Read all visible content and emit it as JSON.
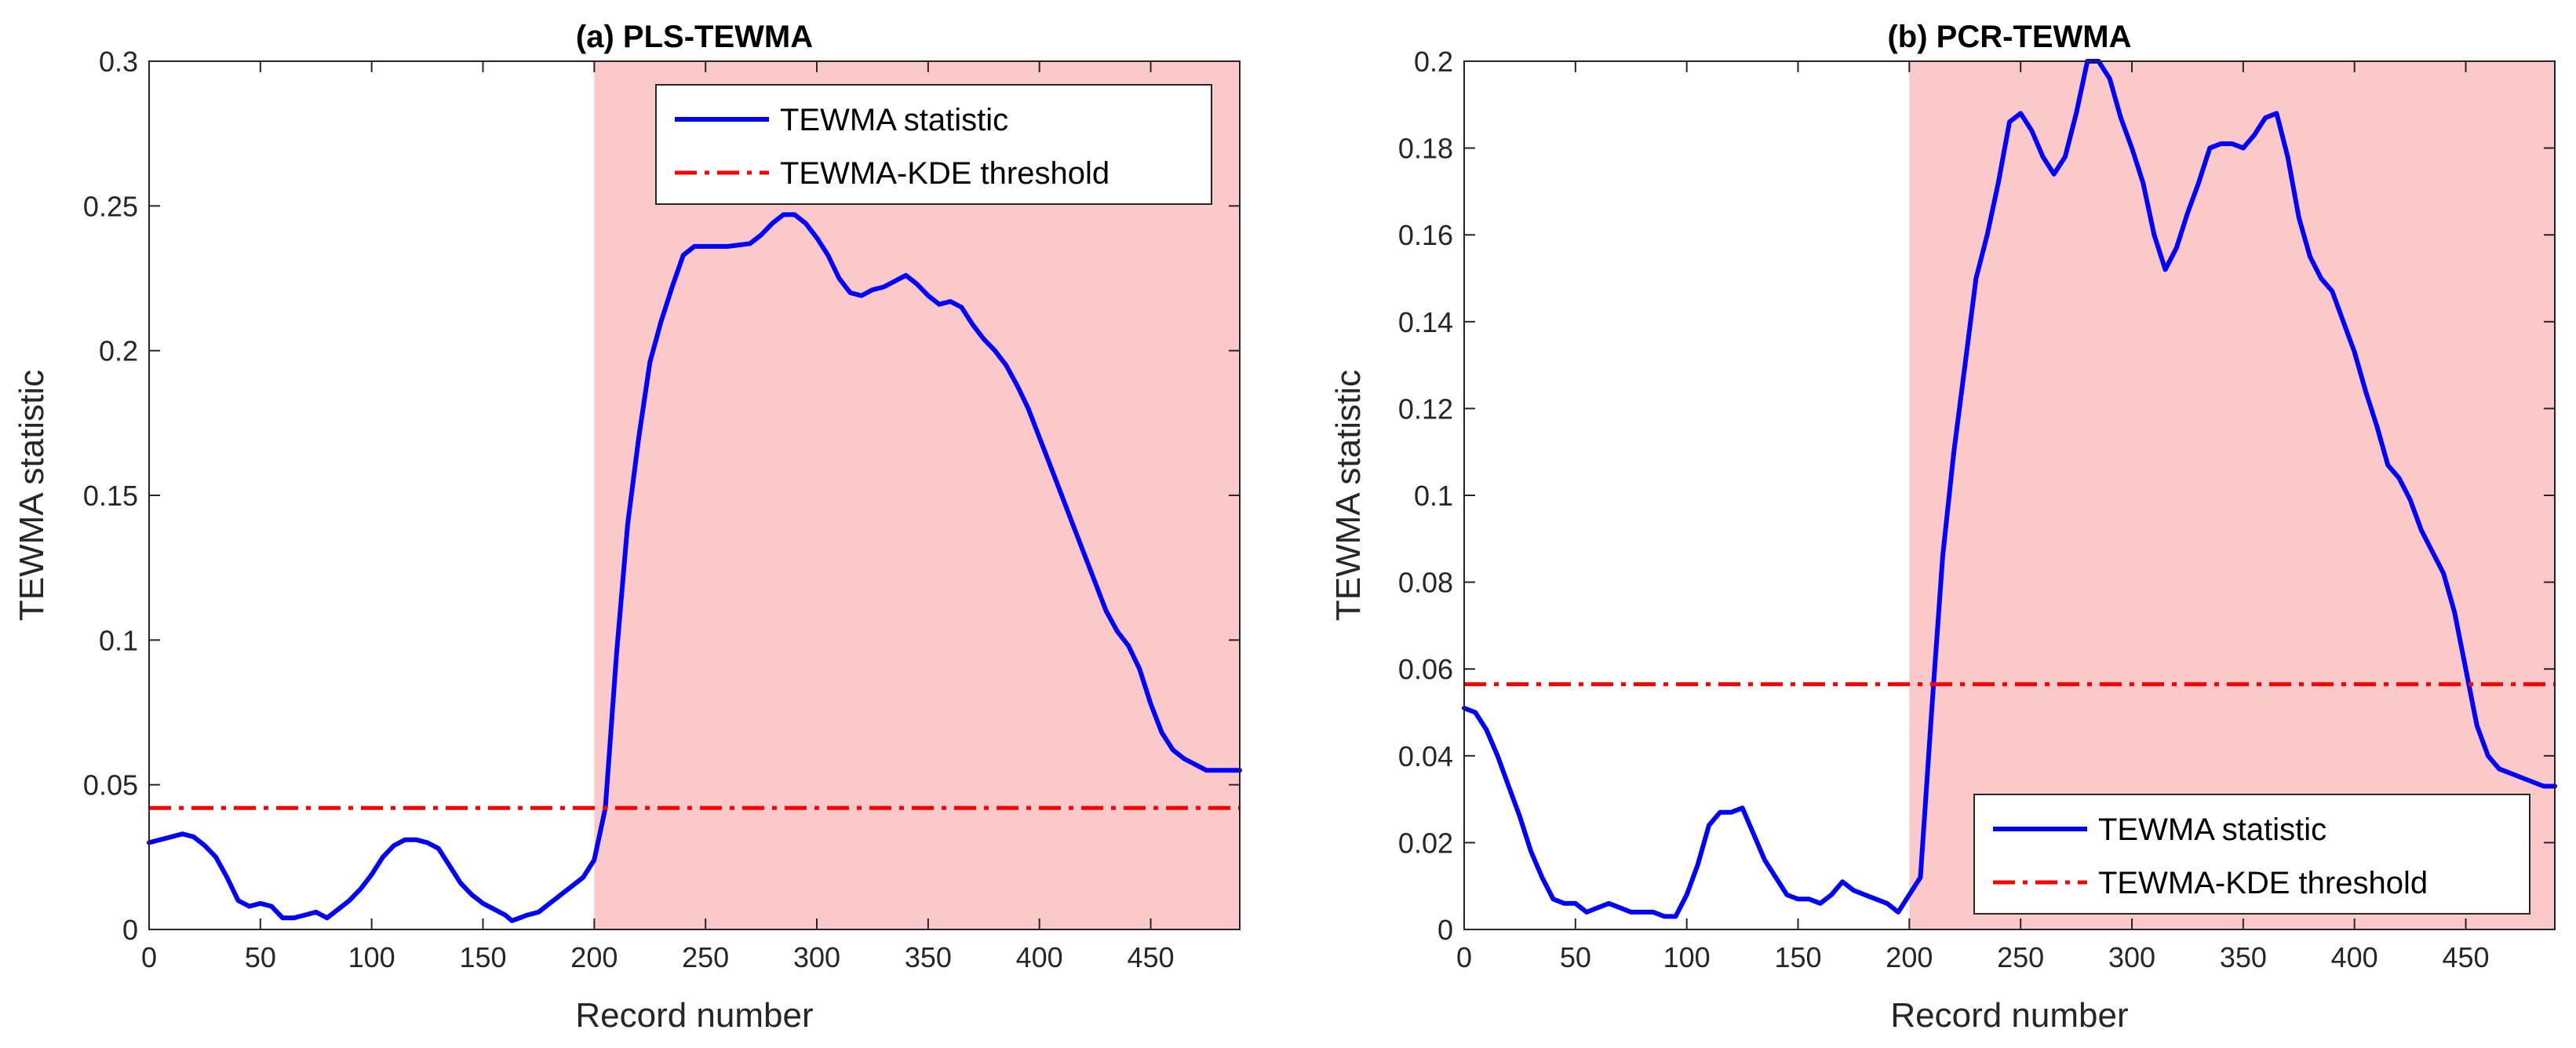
{
  "chart_data": [
    {
      "type": "line",
      "title": "(a) PLS-TEWMA",
      "xlabel": "Record number",
      "ylabel": "TEWMA statistic",
      "xlim": [
        0,
        490
      ],
      "ylim": [
        0,
        0.3
      ],
      "xticks": [
        0,
        50,
        100,
        150,
        200,
        250,
        300,
        350,
        400,
        450
      ],
      "yticks": [
        0,
        0.05,
        0.1,
        0.15,
        0.2,
        0.25,
        0.3
      ],
      "xtick_labels": [
        "0",
        "50",
        "100",
        "150",
        "200",
        "250",
        "300",
        "350",
        "400",
        "450"
      ],
      "ytick_labels": [
        "0",
        "0.05",
        "0.1",
        "0.15",
        "0.2",
        "0.25",
        "0.3"
      ],
      "grid": false,
      "legend_position": "top-right",
      "shaded_region": {
        "x_start": 200,
        "x_end": 490,
        "color": "#fbc9c9"
      },
      "series": [
        {
          "name": "TEWMA statistic",
          "color": "#0000ff",
          "style": "solid",
          "x": [
            0,
            10,
            15,
            20,
            25,
            30,
            35,
            40,
            45,
            50,
            55,
            60,
            65,
            70,
            75,
            80,
            85,
            90,
            95,
            100,
            105,
            110,
            115,
            120,
            125,
            130,
            135,
            140,
            145,
            150,
            155,
            160,
            163,
            170,
            175,
            180,
            185,
            190,
            195,
            200,
            205,
            210,
            215,
            220,
            225,
            230,
            235,
            240,
            245,
            250,
            255,
            260,
            270,
            275,
            280,
            285,
            290,
            295,
            300,
            305,
            310,
            315,
            320,
            325,
            330,
            335,
            340,
            345,
            350,
            355,
            360,
            365,
            370,
            375,
            380,
            385,
            390,
            395,
            400,
            405,
            410,
            415,
            420,
            425,
            430,
            435,
            440,
            445,
            450,
            455,
            460,
            465,
            470,
            475,
            480,
            485,
            490
          ],
          "values": [
            0.03,
            0.032,
            0.033,
            0.032,
            0.029,
            0.025,
            0.018,
            0.01,
            0.008,
            0.009,
            0.008,
            0.004,
            0.004,
            0.005,
            0.006,
            0.004,
            0.007,
            0.01,
            0.014,
            0.019,
            0.025,
            0.029,
            0.031,
            0.031,
            0.03,
            0.028,
            0.022,
            0.016,
            0.012,
            0.009,
            0.007,
            0.005,
            0.003,
            0.005,
            0.006,
            0.009,
            0.012,
            0.015,
            0.018,
            0.024,
            0.042,
            0.095,
            0.14,
            0.17,
            0.196,
            0.21,
            0.222,
            0.233,
            0.236,
            0.236,
            0.236,
            0.236,
            0.237,
            0.24,
            0.244,
            0.247,
            0.247,
            0.244,
            0.239,
            0.233,
            0.225,
            0.22,
            0.219,
            0.221,
            0.222,
            0.224,
            0.226,
            0.223,
            0.219,
            0.216,
            0.217,
            0.215,
            0.209,
            0.204,
            0.2,
            0.195,
            0.188,
            0.18,
            0.17,
            0.16,
            0.15,
            0.14,
            0.13,
            0.12,
            0.11,
            0.103,
            0.098,
            0.09,
            0.078,
            0.068,
            0.062,
            0.059,
            0.057,
            0.055,
            0.055,
            0.055,
            0.055
          ]
        },
        {
          "name": "TEWMA-KDE threshold",
          "color": "#ff0000",
          "style": "dashdot",
          "x": [
            0,
            490
          ],
          "values": [
            0.042,
            0.042
          ]
        }
      ]
    },
    {
      "type": "line",
      "title": "(b) PCR-TEWMA",
      "xlabel": "Record number",
      "ylabel": "TEWMA statistic",
      "xlim": [
        0,
        490
      ],
      "ylim": [
        0,
        0.2
      ],
      "xticks": [
        0,
        50,
        100,
        150,
        200,
        250,
        300,
        350,
        400,
        450
      ],
      "yticks": [
        0,
        0.02,
        0.04,
        0.06,
        0.08,
        0.1,
        0.12,
        0.14,
        0.16,
        0.18,
        0.2
      ],
      "xtick_labels": [
        "0",
        "50",
        "100",
        "150",
        "200",
        "250",
        "300",
        "350",
        "400",
        "450"
      ],
      "ytick_labels": [
        "0",
        "0.02",
        "0.04",
        "0.06",
        "0.08",
        "0.1",
        "0.12",
        "0.14",
        "0.16",
        "0.18",
        "0.2"
      ],
      "grid": false,
      "legend_position": "bottom-right",
      "shaded_region": {
        "x_start": 200,
        "x_end": 490,
        "color": "#fbc9c9"
      },
      "series": [
        {
          "name": "TEWMA statistic",
          "color": "#0000ff",
          "style": "solid",
          "x": [
            0,
            5,
            10,
            15,
            20,
            25,
            30,
            35,
            40,
            45,
            50,
            55,
            60,
            65,
            70,
            75,
            80,
            85,
            90,
            95,
            100,
            105,
            110,
            115,
            120,
            125,
            130,
            135,
            140,
            145,
            150,
            155,
            160,
            165,
            170,
            175,
            180,
            185,
            190,
            195,
            200,
            205,
            210,
            215,
            220,
            225,
            230,
            235,
            240,
            245,
            250,
            255,
            260,
            265,
            270,
            275,
            280,
            285,
            290,
            295,
            300,
            305,
            310,
            315,
            320,
            325,
            330,
            335,
            340,
            345,
            350,
            355,
            360,
            365,
            370,
            375,
            380,
            385,
            390,
            395,
            400,
            405,
            410,
            415,
            420,
            425,
            430,
            435,
            440,
            445,
            450,
            455,
            460,
            465,
            470,
            475,
            480,
            485,
            490
          ],
          "values": [
            0.051,
            0.05,
            0.046,
            0.04,
            0.033,
            0.026,
            0.018,
            0.012,
            0.007,
            0.006,
            0.006,
            0.004,
            0.005,
            0.006,
            0.005,
            0.004,
            0.004,
            0.004,
            0.003,
            0.003,
            0.008,
            0.015,
            0.024,
            0.027,
            0.027,
            0.028,
            0.022,
            0.016,
            0.012,
            0.008,
            0.007,
            0.007,
            0.006,
            0.008,
            0.011,
            0.009,
            0.008,
            0.007,
            0.006,
            0.004,
            0.008,
            0.012,
            0.05,
            0.086,
            0.11,
            0.13,
            0.15,
            0.16,
            0.172,
            0.186,
            0.188,
            0.184,
            0.178,
            0.174,
            0.178,
            0.188,
            0.2,
            0.2,
            0.196,
            0.187,
            0.18,
            0.172,
            0.16,
            0.152,
            0.157,
            0.165,
            0.172,
            0.18,
            0.181,
            0.181,
            0.18,
            0.183,
            0.187,
            0.188,
            0.178,
            0.164,
            0.155,
            0.15,
            0.147,
            0.14,
            0.133,
            0.124,
            0.116,
            0.107,
            0.104,
            0.099,
            0.092,
            0.087,
            0.082,
            0.073,
            0.06,
            0.047,
            0.04,
            0.037,
            0.036,
            0.035,
            0.034,
            0.033,
            0.033
          ]
        },
        {
          "name": "TEWMA-KDE threshold",
          "color": "#ff0000",
          "style": "dashdot",
          "x": [
            0,
            490
          ],
          "values": [
            0.0565,
            0.0565
          ]
        }
      ]
    }
  ]
}
